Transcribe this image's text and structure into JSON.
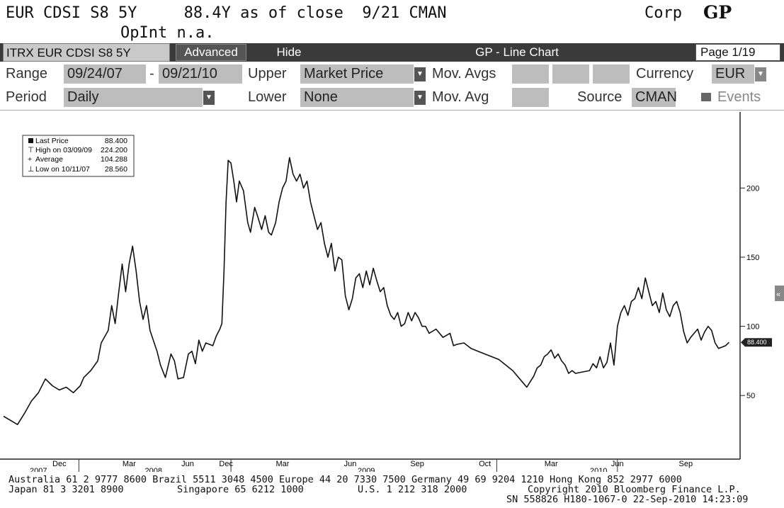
{
  "header": {
    "line1": "EUR CDSI S8 5Y     88.4Y as of close  9/21 CMAN",
    "line2": "OpInt n.a.",
    "corp": "Corp",
    "gp": "GP"
  },
  "tabs": {
    "ticker": "ITRX EUR CDSI S8 5Y",
    "advanced": "Advanced",
    "hide": "Hide",
    "title": "GP - Line Chart",
    "page": "Page 1/19"
  },
  "controls": {
    "range_label": "Range",
    "range_start": "09/24/07",
    "range_sep": "-",
    "range_end": "09/21/10",
    "upper_label": "Upper",
    "upper_value": "Market Price",
    "movavgs_label": "Mov. Avgs",
    "currency_label": "Currency",
    "currency_value": "EUR",
    "period_label": "Period",
    "period_value": "Daily",
    "lower_label": "Lower",
    "lower_value": "None",
    "movavg_label": "Mov. Avg",
    "source_label": "Source",
    "source_value": "CMAN",
    "events_label": "Events"
  },
  "legend": {
    "last_label": "Last Price",
    "last_value": "88.400",
    "high_label": "High on 03/09/09",
    "high_value": "224.200",
    "avg_label": "Average",
    "avg_value": "104.288",
    "low_label": "Low on 10/11/07",
    "low_value": "28.560"
  },
  "last_tag": "88.400",
  "chart_data": {
    "type": "line",
    "y_ticks": [
      "50",
      "100",
      "150",
      "200"
    ],
    "ylim": [
      4,
      255
    ],
    "x_month_labels": [
      {
        "label": "Dec",
        "t": 0.08
      },
      {
        "label": "Mar",
        "t": 0.18
      },
      {
        "label": "Jun",
        "t": 0.264
      },
      {
        "label": "Dec",
        "t": 0.319
      },
      {
        "label": "Mar",
        "t": 0.4
      },
      {
        "label": "Jun",
        "t": 0.497
      },
      {
        "label": "Sep",
        "t": 0.593
      },
      {
        "label": "Oct",
        "t": 0.69
      },
      {
        "label": "Mar",
        "t": 0.785
      },
      {
        "label": "Jun",
        "t": 0.88
      },
      {
        "label": "Sep",
        "t": 0.978
      }
    ],
    "x_year_labels": [
      {
        "label": "2007",
        "t": 0.05
      },
      {
        "label": "2008",
        "t": 0.215
      },
      {
        "label": "2009",
        "t": 0.52
      },
      {
        "label": "2010",
        "t": 0.853
      }
    ],
    "x_year_ticks": [
      0.108,
      0.326,
      0.707,
      0.88
    ],
    "series": [
      {
        "points": [
          [
            0.0,
            35
          ],
          [
            0.01,
            32
          ],
          [
            0.02,
            29
          ],
          [
            0.03,
            37
          ],
          [
            0.04,
            46
          ],
          [
            0.05,
            52
          ],
          [
            0.06,
            62
          ],
          [
            0.07,
            57
          ],
          [
            0.08,
            54
          ],
          [
            0.09,
            56
          ],
          [
            0.1,
            52
          ],
          [
            0.11,
            57
          ],
          [
            0.115,
            63
          ],
          [
            0.125,
            68
          ],
          [
            0.135,
            75
          ],
          [
            0.14,
            88
          ],
          [
            0.15,
            97
          ],
          [
            0.155,
            115
          ],
          [
            0.16,
            102
          ],
          [
            0.165,
            124
          ],
          [
            0.17,
            145
          ],
          [
            0.175,
            125
          ],
          [
            0.18,
            145
          ],
          [
            0.185,
            158
          ],
          [
            0.19,
            140
          ],
          [
            0.195,
            118
          ],
          [
            0.2,
            105
          ],
          [
            0.205,
            115
          ],
          [
            0.21,
            97
          ],
          [
            0.22,
            82
          ],
          [
            0.225,
            72
          ],
          [
            0.232,
            63
          ],
          [
            0.24,
            80
          ],
          [
            0.245,
            75
          ],
          [
            0.25,
            62
          ],
          [
            0.258,
            63
          ],
          [
            0.265,
            80
          ],
          [
            0.27,
            82
          ],
          [
            0.275,
            73
          ],
          [
            0.28,
            90
          ],
          [
            0.285,
            82
          ],
          [
            0.29,
            88
          ],
          [
            0.3,
            86
          ],
          [
            0.305,
            93
          ],
          [
            0.31,
            98
          ],
          [
            0.313,
            102
          ],
          [
            0.316,
            140
          ],
          [
            0.319,
            190
          ],
          [
            0.322,
            220
          ],
          [
            0.326,
            218
          ],
          [
            0.33,
            205
          ],
          [
            0.334,
            190
          ],
          [
            0.338,
            205
          ],
          [
            0.344,
            198
          ],
          [
            0.35,
            175
          ],
          [
            0.354,
            168
          ],
          [
            0.36,
            186
          ],
          [
            0.364,
            180
          ],
          [
            0.37,
            170
          ],
          [
            0.375,
            180
          ],
          [
            0.38,
            168
          ],
          [
            0.384,
            166
          ],
          [
            0.39,
            175
          ],
          [
            0.395,
            190
          ],
          [
            0.4,
            200
          ],
          [
            0.405,
            205
          ],
          [
            0.41,
            222
          ],
          [
            0.415,
            210
          ],
          [
            0.42,
            205
          ],
          [
            0.425,
            210
          ],
          [
            0.43,
            200
          ],
          [
            0.435,
            205
          ],
          [
            0.44,
            190
          ],
          [
            0.445,
            180
          ],
          [
            0.45,
            170
          ],
          [
            0.455,
            175
          ],
          [
            0.46,
            160
          ],
          [
            0.465,
            150
          ],
          [
            0.47,
            160
          ],
          [
            0.475,
            140
          ],
          [
            0.48,
            150
          ],
          [
            0.485,
            148
          ],
          [
            0.49,
            122
          ],
          [
            0.495,
            112
          ],
          [
            0.5,
            120
          ],
          [
            0.505,
            135
          ],
          [
            0.51,
            138
          ],
          [
            0.515,
            128
          ],
          [
            0.52,
            140
          ],
          [
            0.525,
            130
          ],
          [
            0.53,
            142
          ],
          [
            0.535,
            133
          ],
          [
            0.54,
            125
          ],
          [
            0.545,
            128
          ],
          [
            0.55,
            115
          ],
          [
            0.555,
            108
          ],
          [
            0.56,
            105
          ],
          [
            0.565,
            110
          ],
          [
            0.57,
            100
          ],
          [
            0.575,
            102
          ],
          [
            0.58,
            110
          ],
          [
            0.585,
            104
          ],
          [
            0.59,
            110
          ],
          [
            0.595,
            106
          ],
          [
            0.6,
            100
          ],
          [
            0.605,
            100
          ],
          [
            0.61,
            95
          ],
          [
            0.62,
            98
          ],
          [
            0.63,
            92
          ],
          [
            0.64,
            95
          ],
          [
            0.645,
            86
          ],
          [
            0.65,
            87
          ],
          [
            0.66,
            88
          ],
          [
            0.67,
            84
          ],
          [
            0.68,
            82
          ],
          [
            0.69,
            80
          ],
          [
            0.7,
            78
          ],
          [
            0.71,
            76
          ],
          [
            0.72,
            72
          ],
          [
            0.73,
            68
          ],
          [
            0.74,
            62
          ],
          [
            0.75,
            56
          ],
          [
            0.755,
            60
          ],
          [
            0.76,
            64
          ],
          [
            0.765,
            70
          ],
          [
            0.77,
            72
          ],
          [
            0.775,
            78
          ],
          [
            0.78,
            80
          ],
          [
            0.785,
            83
          ],
          [
            0.79,
            77
          ],
          [
            0.795,
            80
          ],
          [
            0.8,
            75
          ],
          [
            0.805,
            72
          ],
          [
            0.81,
            66
          ],
          [
            0.815,
            68
          ],
          [
            0.82,
            66
          ],
          [
            0.83,
            67
          ],
          [
            0.84,
            68
          ],
          [
            0.845,
            73
          ],
          [
            0.85,
            70
          ],
          [
            0.855,
            78
          ],
          [
            0.86,
            70
          ],
          [
            0.865,
            74
          ],
          [
            0.87,
            88
          ],
          [
            0.875,
            72
          ],
          [
            0.88,
            100
          ],
          [
            0.885,
            110
          ],
          [
            0.89,
            115
          ],
          [
            0.895,
            108
          ],
          [
            0.9,
            118
          ],
          [
            0.905,
            120
          ],
          [
            0.91,
            128
          ],
          [
            0.915,
            120
          ],
          [
            0.92,
            135
          ],
          [
            0.925,
            125
          ],
          [
            0.93,
            115
          ],
          [
            0.935,
            118
          ],
          [
            0.94,
            110
          ],
          [
            0.945,
            124
          ],
          [
            0.95,
            112
          ],
          [
            0.955,
            107
          ],
          [
            0.96,
            115
          ],
          [
            0.965,
            118
          ],
          [
            0.97,
            110
          ],
          [
            0.975,
            96
          ],
          [
            0.98,
            88
          ],
          [
            0.985,
            92
          ],
          [
            0.99,
            95
          ],
          [
            0.995,
            98
          ],
          [
            1.0,
            90
          ],
          [
            1.005,
            96
          ],
          [
            1.01,
            100
          ],
          [
            1.015,
            97
          ],
          [
            1.02,
            88
          ],
          [
            1.025,
            84
          ],
          [
            1.03,
            85
          ],
          [
            1.035,
            86
          ],
          [
            1.04,
            88.4
          ]
        ]
      }
    ]
  },
  "footer": {
    "line1": "Australia 61 2 9777 8600 Brazil 5511 3048 4500 Europe 44 20 7330 7500 Germany 49 69 9204 1210 Hong Kong 852 2977 6000",
    "line2a": "Japan 81 3 3201 8900",
    "line2b": "Singapore 65 6212 1000",
    "line2c": "U.S. 1 212 318 2000",
    "line2d": "Copyright 2010 Bloomberg Finance L.P.",
    "line3": "SN 558826 H180-1067-0 22-Sep-2010 14:23:09"
  }
}
